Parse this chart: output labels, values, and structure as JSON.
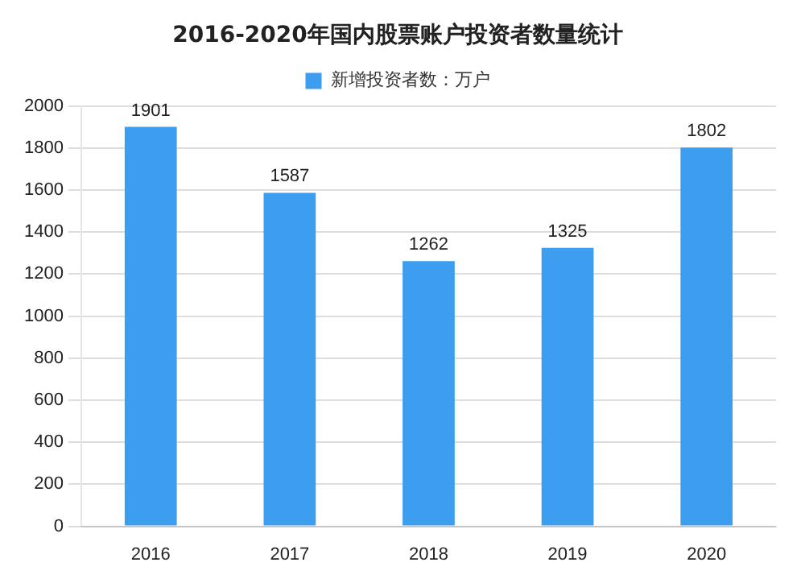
{
  "chart_data": {
    "type": "bar",
    "title": "2016-2020年国内股票账户投资者数量统计",
    "categories": [
      "2016",
      "2017",
      "2018",
      "2019",
      "2020"
    ],
    "series": [
      {
        "name": "新增投资者数：万户",
        "color": "#3d9ef0",
        "values": [
          1901,
          1587,
          1262,
          1325,
          1802
        ]
      }
    ],
    "ylim": [
      0,
      2000
    ],
    "yticks": [
      0,
      200,
      400,
      600,
      800,
      1000,
      1200,
      1400,
      1600,
      1800,
      2000
    ],
    "grid": "y",
    "legend": "top",
    "data_labels": true
  }
}
